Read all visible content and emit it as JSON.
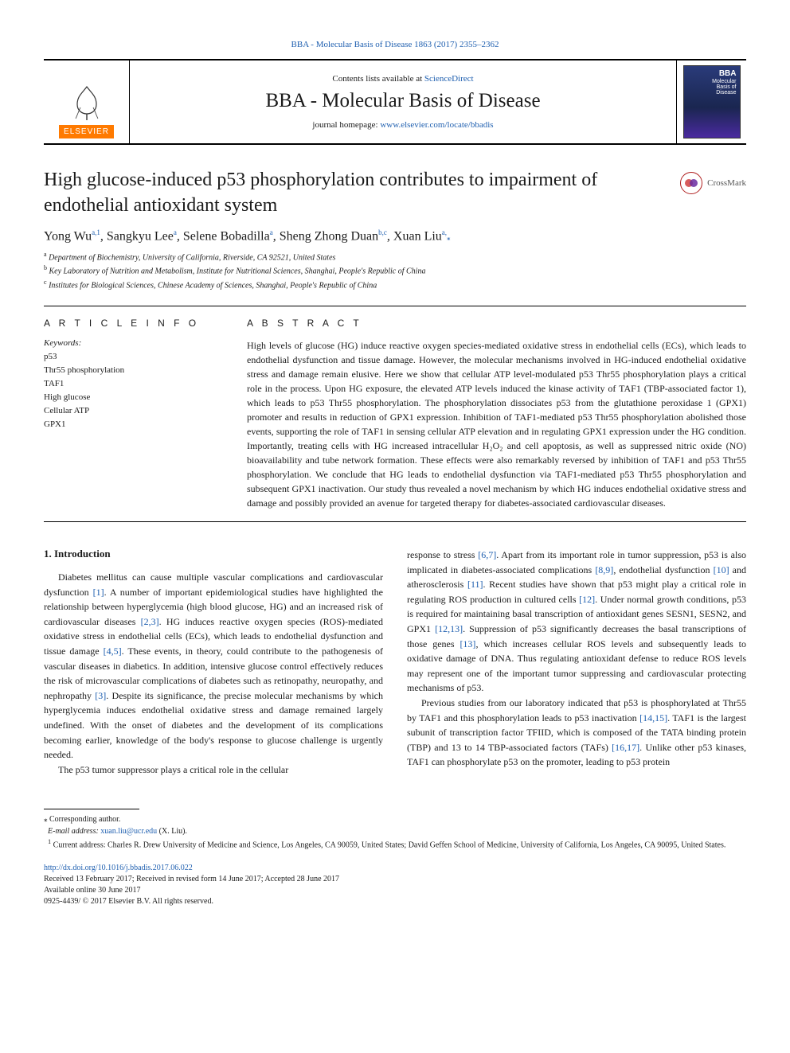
{
  "citation": "BBA - Molecular Basis of Disease 1863 (2017) 2355–2362",
  "header": {
    "contents_prefix": "Contents lists available at ",
    "contents_link": "ScienceDirect",
    "journal": "BBA - Molecular Basis of Disease",
    "homepage_prefix": "journal homepage: ",
    "homepage_link": "www.elsevier.com/locate/bbadis",
    "publisher_mark": "ELSEVIER",
    "cover_title_top": "BBA",
    "cover_title_sub": "Molecular Basis of Disease"
  },
  "crossmark_label": "CrossMark",
  "title": "High glucose-induced p53 phosphorylation contributes to impairment of endothelial antioxidant system",
  "authors_html": "Yong Wu<sup>a,1</sup>, Sangkyu Lee<sup>a</sup>, Selene Bobadilla<sup>a</sup>, Sheng Zhong Duan<sup>b,c</sup>, Xuan Liu<sup>a,</sup><span class='star-sup'>⁎</span>",
  "affiliations": [
    {
      "mark": "a",
      "text": "Department of Biochemistry, University of California, Riverside, CA 92521, United States"
    },
    {
      "mark": "b",
      "text": "Key Laboratory of Nutrition and Metabolism, Institute for Nutritional Sciences, Shanghai, People's Republic of China"
    },
    {
      "mark": "c",
      "text": "Institutes for Biological Sciences, Chinese Academy of Sciences, Shanghai, People's Republic of China"
    }
  ],
  "article_info_head": "A R T I C L E   I N F O",
  "abstract_head": "A B S T R A C T",
  "keywords_label": "Keywords:",
  "keywords": [
    "p53",
    "Thr55 phosphorylation",
    "TAF1",
    "High glucose",
    "Cellular ATP",
    "GPX1"
  ],
  "abstract": "High levels of glucose (HG) induce reactive oxygen species-mediated oxidative stress in endothelial cells (ECs), which leads to endothelial dysfunction and tissue damage. However, the molecular mechanisms involved in HG-induced endothelial oxidative stress and damage remain elusive. Here we show that cellular ATP level-modulated p53 Thr55 phosphorylation plays a critical role in the process. Upon HG exposure, the elevated ATP levels induced the kinase activity of TAF1 (TBP-associated factor 1), which leads to p53 Thr55 phosphorylation. The phosphorylation dissociates p53 from the glutathione peroxidase 1 (GPX1) promoter and results in reduction of GPX1 expression. Inhibition of TAF1-mediated p53 Thr55 phosphorylation abolished those events, supporting the role of TAF1 in sensing cellular ATP elevation and in regulating GPX1 expression under the HG condition. Importantly, treating cells with HG increased intracellular H₂O₂ and cell apoptosis, as well as suppressed nitric oxide (NO) bioavailability and tube network formation. These effects were also remarkably reversed by inhibition of TAF1 and p53 Thr55 phosphorylation. We conclude that HG leads to endothelial dysfunction via TAF1-mediated p53 Thr55 phosphorylation and subsequent GPX1 inactivation. Our study thus revealed a novel mechanism by which HG induces endothelial oxidative stress and damage and possibly provided an avenue for targeted therapy for diabetes-associated cardiovascular diseases.",
  "section1_head": "1. Introduction",
  "body": {
    "p1": "Diabetes mellitus can cause multiple vascular complications and cardiovascular dysfunction [1]. A number of important epidemiological studies have highlighted the relationship between hyperglycemia (high blood glucose, HG) and an increased risk of cardiovascular diseases [2,3]. HG induces reactive oxygen species (ROS)-mediated oxidative stress in endothelial cells (ECs), which leads to endothelial dysfunction and tissue damage [4,5]. These events, in theory, could contribute to the pathogenesis of vascular diseases in diabetics. In addition, intensive glucose control effectively reduces the risk of microvascular complications of diabetes such as retinopathy, neuropathy, and nephropathy [3]. Despite its significance, the precise molecular mechanisms by which hyperglycemia induces endothelial oxidative stress and damage remained largely undefined. With the onset of diabetes and the development of its complications becoming earlier, knowledge of the body's response to glucose challenge is urgently needed.",
    "p2": "The p53 tumor suppressor plays a critical role in the cellular",
    "p3": "response to stress [6,7]. Apart from its important role in tumor suppression, p53 is also implicated in diabetes-associated complications [8,9], endothelial dysfunction [10] and atherosclerosis [11]. Recent studies have shown that p53 might play a critical role in regulating ROS production in cultured cells [12]. Under normal growth conditions, p53 is required for maintaining basal transcription of antioxidant genes SESN1, SESN2, and GPX1 [12,13]. Suppression of p53 significantly decreases the basal transcriptions of those genes [13], which increases cellular ROS levels and subsequently leads to oxidative damage of DNA. Thus regulating antioxidant defense to reduce ROS levels may represent one of the important tumor suppressing and cardiovascular protecting mechanisms of p53.",
    "p4": "Previous studies from our laboratory indicated that p53 is phosphorylated at Thr55 by TAF1 and this phosphorylation leads to p53 inactivation [14,15]. TAF1 is the largest subunit of transcription factor TFIID, which is composed of the TATA binding protein (TBP) and 13 to 14 TBP-associated factors (TAFs) [16,17]. Unlike other p53 kinases, TAF1 can phosphorylate p53 on the promoter, leading to p53 protein"
  },
  "footnotes": {
    "corresponding": "Corresponding author.",
    "email_label": "E-mail address:",
    "email": "xuan.liu@ucr.edu",
    "email_tail": " (X. Liu).",
    "note1": "Current address: Charles R. Drew University of Medicine and Science, Los Angeles, CA 90059, United States; David Geffen School of Medicine, University of California, Los Angeles, CA 90095, United States."
  },
  "doi": {
    "url": "http://dx.doi.org/10.1016/j.bbadis.2017.06.022",
    "received": "Received 13 February 2017; Received in revised form 14 June 2017; Accepted 28 June 2017",
    "online": "Available online 30 June 2017",
    "copyright": "0925-4439/ © 2017 Elsevier B.V. All rights reserved."
  },
  "colors": {
    "link": "#2060b0",
    "elsevier_orange": "#ff7a00",
    "crossmark_red": "#b02020"
  }
}
